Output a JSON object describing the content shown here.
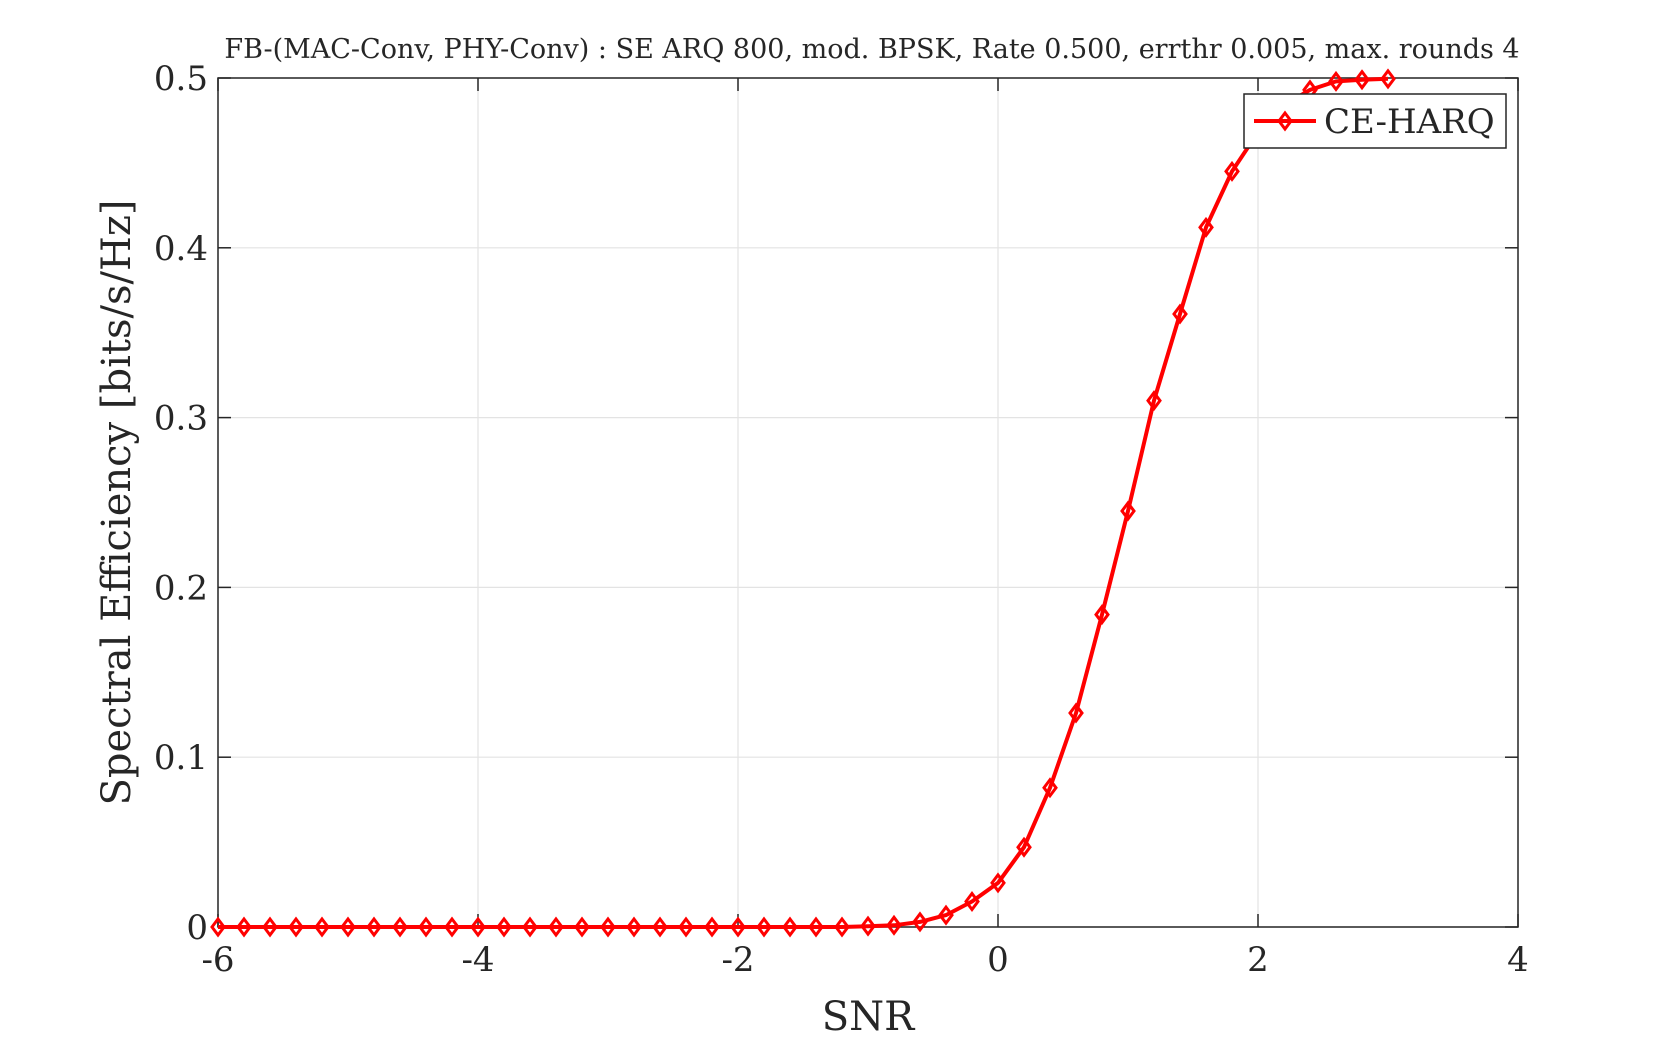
{
  "chart_data": {
    "type": "line",
    "title": "FB-(MAC-Conv, PHY-Conv) : SE ARQ 800, mod. BPSK, Rate 0.500, errthr 0.005, max. rounds 4",
    "xlabel": "SNR",
    "ylabel": "Spectral Efficiency [bits/s/Hz]",
    "xlim": [
      -6,
      4
    ],
    "ylim": [
      0,
      0.5
    ],
    "xticks": [
      -6,
      -4,
      -2,
      0,
      2,
      4
    ],
    "yticks": [
      0,
      0.1,
      0.2,
      0.3,
      0.4,
      0.5
    ],
    "xtick_labels": [
      "-6",
      "-4",
      "-2",
      "0",
      "2",
      "4"
    ],
    "ytick_labels": [
      "0",
      "0.1",
      "0.2",
      "0.3",
      "0.4",
      "0.5"
    ],
    "grid": true,
    "legend_position": "top-right",
    "series": [
      {
        "name": "CE-HARQ",
        "color": "#ff0000",
        "marker": "diamond",
        "x": [
          -6,
          -5.8,
          -5.6,
          -5.4,
          -5.2,
          -5,
          -4.8,
          -4.6,
          -4.4,
          -4.2,
          -4,
          -3.8,
          -3.6,
          -3.4,
          -3.2,
          -3,
          -2.8,
          -2.6,
          -2.4,
          -2.2,
          -2,
          -1.8,
          -1.6,
          -1.4,
          -1.2,
          -1,
          -0.8,
          -0.6,
          -0.4,
          -0.2,
          0,
          0.2,
          0.4,
          0.6,
          0.8,
          1,
          1.2,
          1.4,
          1.6,
          1.8,
          2,
          2.2,
          2.4,
          2.6,
          2.8,
          3
        ],
        "y": [
          0,
          0,
          0,
          0,
          0,
          0,
          0,
          0,
          0,
          0,
          0,
          0,
          0,
          0,
          0,
          0,
          0,
          0,
          0,
          0,
          0,
          0,
          0,
          0,
          0,
          0.0005,
          0.001,
          0.003,
          0.007,
          0.015,
          0.026,
          0.047,
          0.082,
          0.126,
          0.184,
          0.245,
          0.31,
          0.361,
          0.412,
          0.445,
          0.468,
          0.484,
          0.493,
          0.498,
          0.499,
          0.4995
        ]
      }
    ]
  }
}
